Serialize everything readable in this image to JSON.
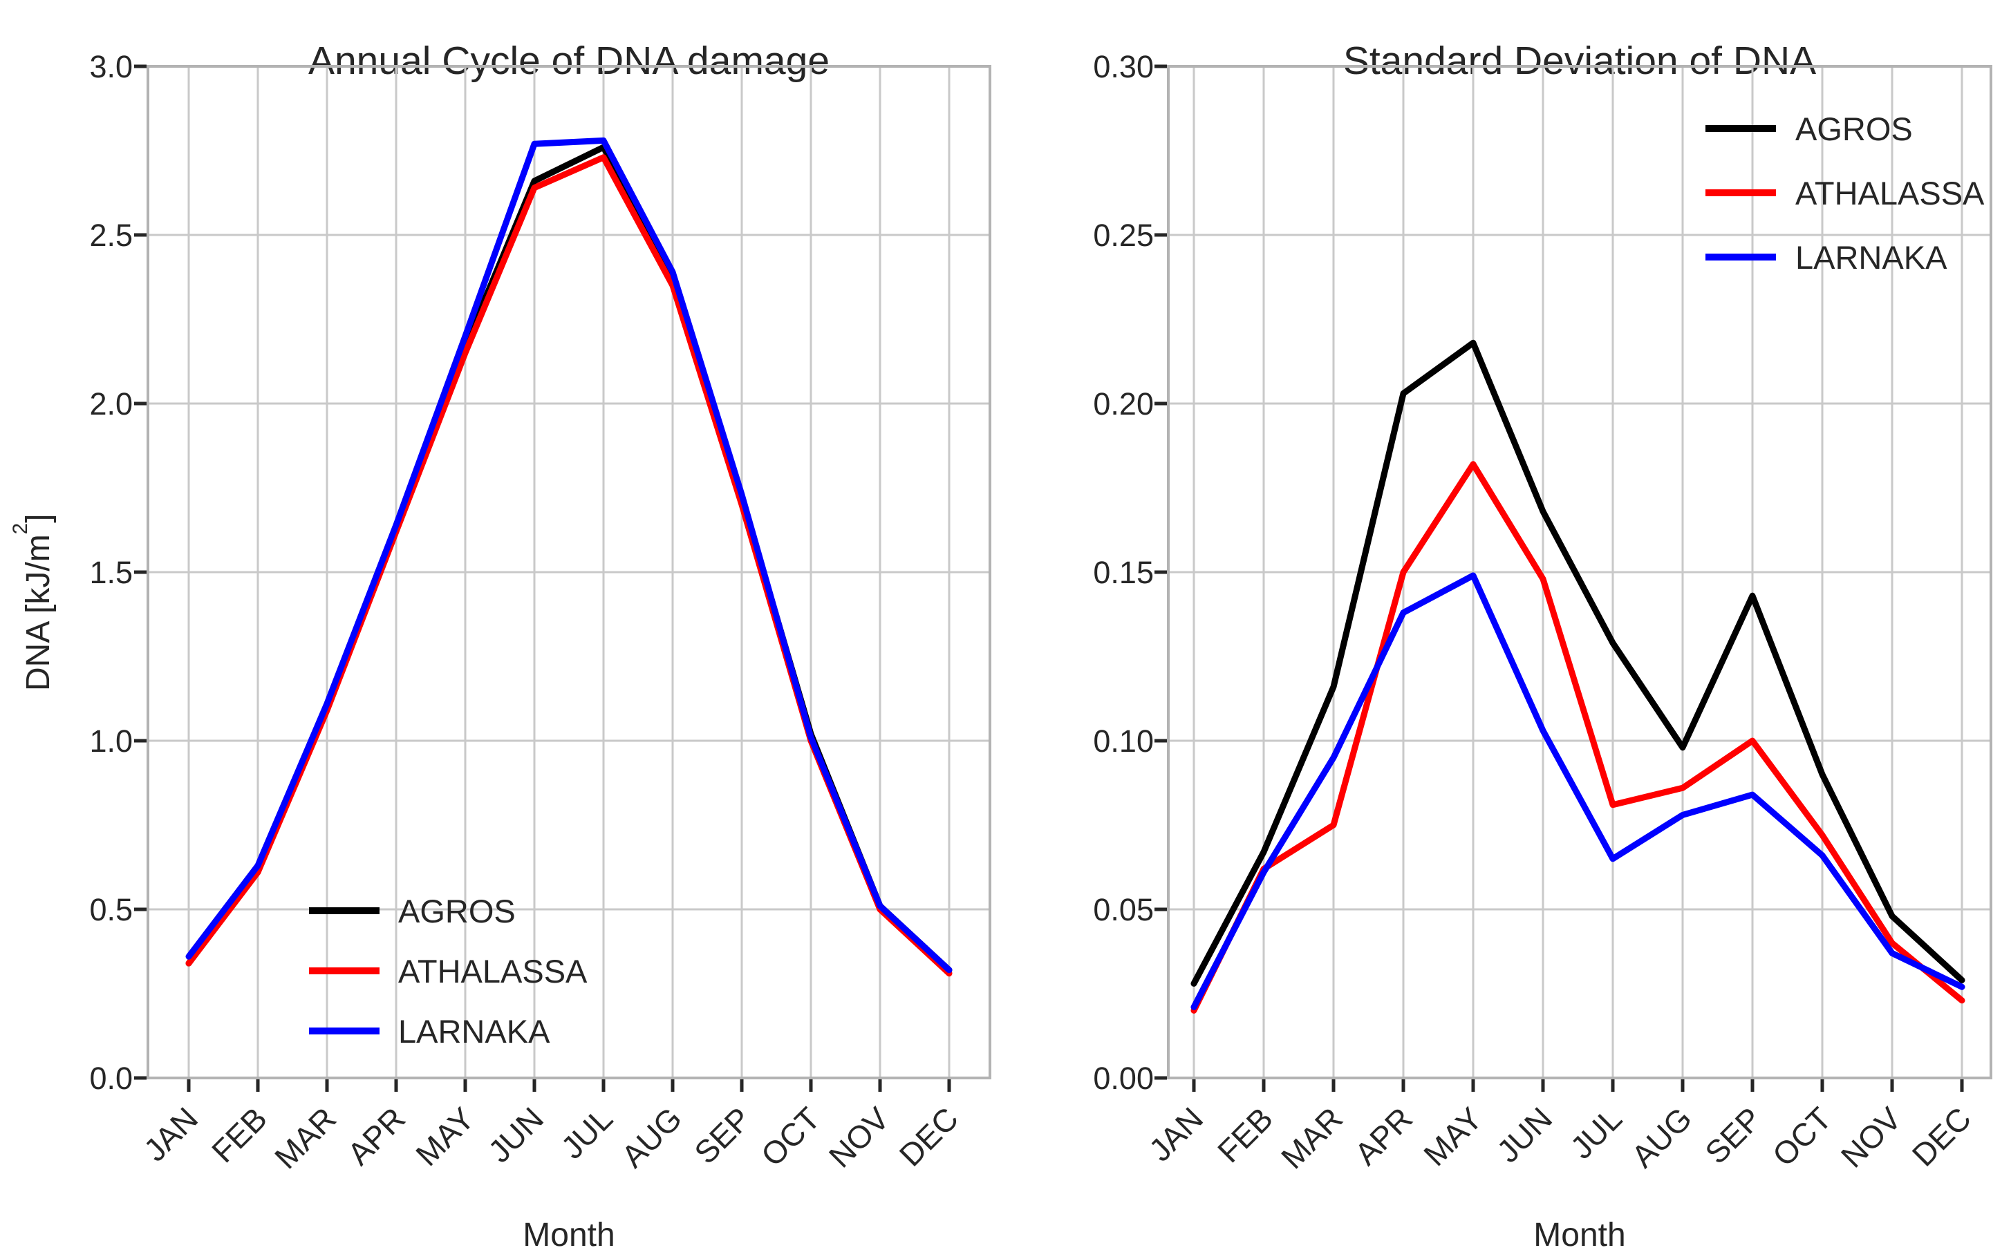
{
  "page": {
    "background": "#ffffff",
    "grid_color": "#c9c9c9",
    "spine_color": "#b3b3b3",
    "text_color": "#262626"
  },
  "chart_data": [
    {
      "type": "line",
      "title": "Annual Cycle of DNA damage",
      "xlabel": "Month",
      "ylabel": {
        "prefix": "DNA [kJ/m",
        "sup": "2",
        "suffix": "]"
      },
      "categories": [
        "JAN",
        "FEB",
        "MAR",
        "APR",
        "MAY",
        "JUN",
        "JUL",
        "AUG",
        "SEP",
        "OCT",
        "NOV",
        "DEC"
      ],
      "ylim": [
        0,
        3.0
      ],
      "ytick_values": [
        0,
        0.5,
        1.0,
        1.5,
        2.0,
        2.5,
        3.0
      ],
      "ytick_labels": [
        "0.0",
        "0.5",
        "1.0",
        "1.5",
        "2.0",
        "2.5",
        "3.0"
      ],
      "grid": true,
      "legend_position": "lower-left-inside",
      "series": [
        {
          "name": "AGROS",
          "color": "#000000",
          "values": [
            0.34,
            0.62,
            1.1,
            1.63,
            2.17,
            2.66,
            2.76,
            2.37,
            1.72,
            1.02,
            0.51,
            0.32
          ]
        },
        {
          "name": "ATHALASSA",
          "color": "#ff0000",
          "values": [
            0.34,
            0.61,
            1.09,
            1.62,
            2.15,
            2.64,
            2.73,
            2.35,
            1.7,
            1.0,
            0.5,
            0.31
          ]
        },
        {
          "name": "LARNAKA",
          "color": "#0000ff",
          "values": [
            0.36,
            0.63,
            1.11,
            1.64,
            2.2,
            2.77,
            2.78,
            2.39,
            1.73,
            1.01,
            0.51,
            0.32
          ]
        }
      ]
    },
    {
      "type": "line",
      "title": "Standard Deviation of DNA",
      "xlabel": "Month",
      "ylabel": null,
      "categories": [
        "JAN",
        "FEB",
        "MAR",
        "APR",
        "MAY",
        "JUN",
        "JUL",
        "AUG",
        "SEP",
        "OCT",
        "NOV",
        "DEC"
      ],
      "ylim": [
        0,
        0.3
      ],
      "ytick_values": [
        0,
        0.05,
        0.1,
        0.15,
        0.2,
        0.25,
        0.3
      ],
      "ytick_labels": [
        "0.00",
        "0.05",
        "0.10",
        "0.15",
        "0.20",
        "0.25",
        "0.30"
      ],
      "grid": true,
      "legend_position": "upper-right-inside",
      "series": [
        {
          "name": "AGROS",
          "color": "#000000",
          "values": [
            0.028,
            0.067,
            0.116,
            0.203,
            0.218,
            0.168,
            0.129,
            0.098,
            0.143,
            0.09,
            0.048,
            0.029
          ]
        },
        {
          "name": "ATHALASSA",
          "color": "#ff0000",
          "values": [
            0.02,
            0.062,
            0.075,
            0.15,
            0.182,
            0.148,
            0.081,
            0.086,
            0.1,
            0.072,
            0.04,
            0.023
          ]
        },
        {
          "name": "LARNAKA",
          "color": "#0000ff",
          "values": [
            0.021,
            0.061,
            0.095,
            0.138,
            0.149,
            0.103,
            0.065,
            0.078,
            0.084,
            0.066,
            0.037,
            0.027
          ]
        }
      ]
    }
  ]
}
